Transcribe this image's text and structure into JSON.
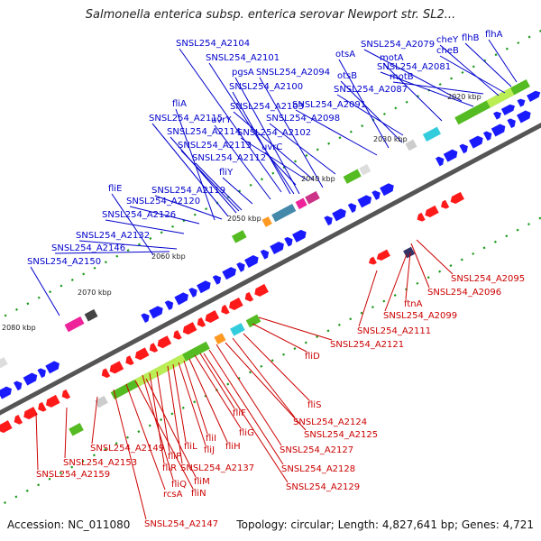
{
  "title": "Salmonella enterica subsp. enterica serovar Newport str. SL2...",
  "footer": {
    "accession": "Accession: NC_011080",
    "topology": "Topology: circular; Length: 4,827,641 bp; Genes: 4,721"
  },
  "colors": {
    "plus_strand_label": "#0000cc",
    "minus_strand_label": "#cc0000",
    "plus_gene": "#1a1aff",
    "minus_gene": "#ff1a1a",
    "backbone": "#555555",
    "tick_dot": "#1a9a1a",
    "gc_green": "#55bb22",
    "gc_light": "#bbee55",
    "magenta": "#ee2299",
    "cyan": "#33ccdd",
    "orange": "#ff9922"
  },
  "ruler": {
    "ticks": [
      "2020 kbp",
      "2030 kbp",
      "2040 kbp",
      "2050 kbp",
      "2060 kbp",
      "2070 kbp",
      "2080 kbp"
    ]
  },
  "labels_top": [
    "SNSL254_A2104",
    "SNSL254_A2101",
    "pgsA",
    "SNSL254_A2094",
    "SNSL254_A2100",
    "otsA",
    "otsB",
    "SNSL254_A2087",
    "motA",
    "SNSL254_A2079",
    "SNSL254_A2081",
    "motB",
    "cheY",
    "cheB",
    "flhB",
    "flhA",
    "fliA",
    "SNSL254_A2103",
    "SNSL254_A2091",
    "SNSL254_A2115",
    "uvrY",
    "SNSL254_A2098",
    "SNSL254_A2114",
    "SNSL254_A2102",
    "SNSL254_A2113",
    "uvrC",
    "SNSL254_A2112",
    "fliY",
    "fliE",
    "SNSL254_A2119",
    "SNSL254_A2120",
    "SNSL254_A2126",
    "SNSL254_A2132",
    "SNSL254_A2146",
    "SNSL254_A2150"
  ],
  "labels_bottom": [
    "SNSL254_A2095",
    "SNSL254_A2096",
    "ftnA",
    "SNSL254_A2099",
    "SNSL254_A2111",
    "SNSL254_A2121",
    "fliD",
    "fliS",
    "SNSL254_A2124",
    "SNSL254_A2125",
    "SNSL254_A2127",
    "SNSL254_A2128",
    "SNSL254_A2129",
    "fliF",
    "fliG",
    "fliH",
    "fliI",
    "fliJ",
    "fliL",
    "fliP",
    "fliR",
    "fliQ",
    "fliM",
    "fliN",
    "SNSL254_A2137",
    "SNSL254_A2149",
    "SNSL254_A2153",
    "SNSL254_A2159",
    "rcsA",
    "SNSL254_A2147"
  ]
}
